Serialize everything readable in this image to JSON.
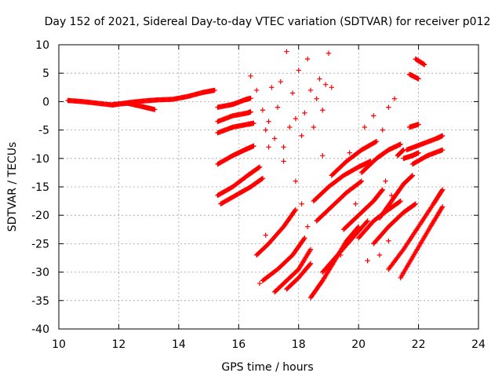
{
  "chart_data": {
    "type": "scatter",
    "title": "Day 152 of 2021, Sidereal Day-to-day VTEC variation (SDTVAR) for receiver p012",
    "xlabel": "GPS time / hours",
    "ylabel": "SDTVAR / TECUs",
    "xlim": [
      10,
      24
    ],
    "ylim": [
      -40,
      10
    ],
    "xticks": [
      10,
      12,
      14,
      16,
      18,
      20,
      22,
      24
    ],
    "yticks": [
      -40,
      -35,
      -30,
      -25,
      -20,
      -15,
      -10,
      -5,
      0,
      5,
      10
    ],
    "grid": true,
    "marker": "+",
    "color": "#ff0000",
    "series": [
      {
        "name": "SDTVAR",
        "segments": [
          {
            "x": [
              10.3,
              10.8,
              11.3,
              11.8,
              12.3,
              12.8,
              13.3,
              13.8,
              14.3,
              14.8,
              15.2
            ],
            "y": [
              0.2,
              0.0,
              -0.3,
              -0.6,
              -0.2,
              0.1,
              0.3,
              0.4,
              0.9,
              1.6,
              2.0
            ]
          },
          {
            "x": [
              11.8,
              12.3,
              12.8,
              13.2
            ],
            "y": [
              -0.5,
              -0.3,
              -0.9,
              -1.4
            ]
          },
          {
            "x": [
              15.3,
              15.8,
              16.2,
              16.4
            ],
            "y": [
              -1.0,
              -0.5,
              0.3,
              0.6
            ]
          },
          {
            "x": [
              15.3,
              15.8,
              16.3,
              16.4
            ],
            "y": [
              -3.5,
              -2.5,
              -2.0,
              -1.8
            ]
          },
          {
            "x": [
              15.3,
              15.8,
              16.3,
              16.5
            ],
            "y": [
              -5.5,
              -4.5,
              -4.0,
              -3.8
            ]
          },
          {
            "x": [
              15.3,
              15.8,
              16.2,
              16.5
            ],
            "y": [
              -11.0,
              -9.5,
              -8.5,
              -7.8
            ]
          },
          {
            "x": [
              15.3,
              15.8,
              16.3,
              16.7
            ],
            "y": [
              -16.5,
              -15.0,
              -13.0,
              -11.5
            ]
          },
          {
            "x": [
              15.4,
              15.9,
              16.4,
              16.8
            ],
            "y": [
              -18.0,
              -16.5,
              -15.0,
              -13.5
            ]
          },
          {
            "x": [
              16.6,
              17.0,
              17.5,
              17.9
            ],
            "y": [
              -27.0,
              -25.0,
              -22.0,
              -19.0
            ]
          },
          {
            "x": [
              16.8,
              17.3,
              17.8,
              18.2
            ],
            "y": [
              -31.5,
              -29.5,
              -27.0,
              -24.0
            ]
          },
          {
            "x": [
              17.2,
              17.6,
              18.0,
              18.4
            ],
            "y": [
              -33.5,
              -31.5,
              -29.5,
              -26.0
            ]
          },
          {
            "x": [
              17.6,
              18.0,
              18.4
            ],
            "y": [
              -33.0,
              -31.0,
              -28.5
            ]
          },
          {
            "x": [
              18.4,
              18.8,
              19.2,
              19.6,
              20.0
            ],
            "y": [
              -34.5,
              -31.5,
              -28.0,
              -24.5,
              -22.0
            ]
          },
          {
            "x": [
              18.8,
              19.3,
              19.8,
              20.3
            ],
            "y": [
              -30.0,
              -27.0,
              -24.0,
              -21.0
            ]
          },
          {
            "x": [
              18.5,
              19.0,
              19.5,
              20.0,
              20.4
            ],
            "y": [
              -17.5,
              -15.0,
              -13.0,
              -11.5,
              -10.5
            ]
          },
          {
            "x": [
              18.6,
              19.1,
              19.6,
              20.1
            ],
            "y": [
              -21.0,
              -18.5,
              -16.0,
              -14.0
            ]
          },
          {
            "x": [
              19.1,
              19.6,
              20.1,
              20.6
            ],
            "y": [
              -13.0,
              -10.5,
              -8.5,
              -7.0
            ]
          },
          {
            "x": [
              19.5,
              20.0,
              20.5,
              20.8
            ],
            "y": [
              -22.5,
              -20.0,
              -17.5,
              -15.5
            ]
          },
          {
            "x": [
              20.0,
              20.5,
              21.0,
              21.4
            ],
            "y": [
              -24.0,
              -21.0,
              -19.0,
              -17.5
            ]
          },
          {
            "x": [
              20.1,
              20.6,
              21.0,
              21.4
            ],
            "y": [
              -12.5,
              -10.0,
              -8.5,
              -7.5
            ]
          },
          {
            "x": [
              20.5,
              21.0,
              21.5,
              21.9
            ],
            "y": [
              -25.0,
              -22.0,
              -19.5,
              -18.0
            ]
          },
          {
            "x": [
              20.7,
              21.1,
              21.5,
              21.8
            ],
            "y": [
              -20.5,
              -17.5,
              -14.5,
              -13.0
            ]
          },
          {
            "x": [
              21.0,
              21.5,
              22.0,
              22.5,
              22.8
            ],
            "y": [
              -29.5,
              -26.0,
              -22.0,
              -18.0,
              -15.5
            ]
          },
          {
            "x": [
              21.4,
              21.9,
              22.4,
              22.8
            ],
            "y": [
              -31.0,
              -26.5,
              -22.0,
              -18.5
            ]
          },
          {
            "x": [
              21.8,
              22.3,
              22.8
            ],
            "y": [
              -11.0,
              -9.5,
              -8.5
            ]
          },
          {
            "x": [
              21.6,
              22.1,
              22.6,
              22.8
            ],
            "y": [
              -8.5,
              -7.5,
              -6.5,
              -6.0
            ]
          },
          {
            "x": [
              21.5,
              21.8,
              22.0
            ],
            "y": [
              -10.0,
              -9.5,
              -9.0
            ]
          },
          {
            "x": [
              21.7,
              22.0
            ],
            "y": [
              -4.5,
              -4.0
            ]
          },
          {
            "x": [
              21.7,
              22.0
            ],
            "y": [
              4.8,
              4.0
            ]
          },
          {
            "x": [
              21.9,
              22.2
            ],
            "y": [
              7.5,
              6.5
            ]
          },
          {
            "x": [
              21.3,
              21.5
            ],
            "y": [
              -9.5,
              -8.5
            ]
          }
        ],
        "scatter_points": [
          {
            "x": 16.4,
            "y": 4.5
          },
          {
            "x": 16.6,
            "y": 2.0
          },
          {
            "x": 16.8,
            "y": -1.5
          },
          {
            "x": 16.9,
            "y": -5.0
          },
          {
            "x": 17.0,
            "y": -3.5
          },
          {
            "x": 17.1,
            "y": 2.5
          },
          {
            "x": 17.2,
            "y": -6.5
          },
          {
            "x": 17.3,
            "y": -1.0
          },
          {
            "x": 17.4,
            "y": 3.5
          },
          {
            "x": 17.5,
            "y": -8.0
          },
          {
            "x": 17.6,
            "y": 8.8
          },
          {
            "x": 17.7,
            "y": -4.5
          },
          {
            "x": 17.8,
            "y": 1.5
          },
          {
            "x": 17.9,
            "y": -3.0
          },
          {
            "x": 18.0,
            "y": 5.5
          },
          {
            "x": 18.1,
            "y": -6.0
          },
          {
            "x": 18.2,
            "y": -2.0
          },
          {
            "x": 18.3,
            "y": 7.5
          },
          {
            "x": 18.4,
            "y": 2.0
          },
          {
            "x": 18.5,
            "y": -4.5
          },
          {
            "x": 18.6,
            "y": 0.5
          },
          {
            "x": 18.7,
            "y": 4.0
          },
          {
            "x": 18.8,
            "y": -1.5
          },
          {
            "x": 18.9,
            "y": 3.0
          },
          {
            "x": 19.0,
            "y": 8.5
          },
          {
            "x": 19.1,
            "y": 2.5
          },
          {
            "x": 17.0,
            "y": -8.0
          },
          {
            "x": 17.5,
            "y": -10.5
          },
          {
            "x": 17.9,
            "y": -14.0
          },
          {
            "x": 18.1,
            "y": -18.0
          },
          {
            "x": 18.3,
            "y": -22.0
          },
          {
            "x": 18.0,
            "y": -25.5
          },
          {
            "x": 16.9,
            "y": -23.5
          },
          {
            "x": 16.7,
            "y": -32.0
          },
          {
            "x": 20.2,
            "y": -4.5
          },
          {
            "x": 20.5,
            "y": -2.5
          },
          {
            "x": 20.8,
            "y": -5.0
          },
          {
            "x": 21.0,
            "y": -1.0
          },
          {
            "x": 21.2,
            "y": 0.5
          },
          {
            "x": 20.9,
            "y": -14.0
          },
          {
            "x": 21.1,
            "y": -16.5
          },
          {
            "x": 20.7,
            "y": -27.0
          },
          {
            "x": 21.0,
            "y": -24.5
          },
          {
            "x": 19.9,
            "y": -18.0
          },
          {
            "x": 19.7,
            "y": -9.0
          },
          {
            "x": 18.8,
            "y": -9.5
          },
          {
            "x": 19.4,
            "y": -27.0
          },
          {
            "x": 20.3,
            "y": -28.0
          }
        ]
      }
    ]
  }
}
